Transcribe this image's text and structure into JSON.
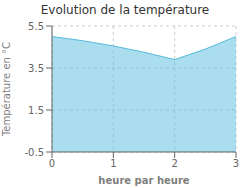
{
  "chart_data": {
    "type": "area",
    "title": "Evolution de la température",
    "xlabel": "heure par heure",
    "ylabel": "Température en °C",
    "x": [
      0,
      0.5,
      1,
      1.5,
      2,
      2.5,
      3
    ],
    "values": [
      5.0,
      4.8,
      4.55,
      4.25,
      3.9,
      4.4,
      5.0
    ],
    "color": "#55bbdd",
    "xlim": [
      0,
      3
    ],
    "xticks": [
      0,
      1,
      2,
      3
    ],
    "ylim": [
      -0.5,
      5.5
    ],
    "yticks": [
      -0.5,
      1.5,
      3.5,
      5.5
    ],
    "grid": true
  }
}
